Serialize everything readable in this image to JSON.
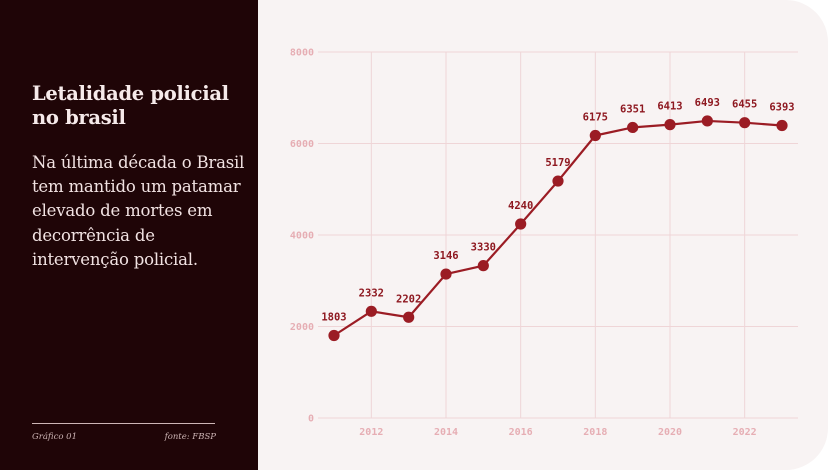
{
  "panel": {
    "title": "Letalidade policial no brasil",
    "description": "Na última década o Brasil tem mantido um patamar elevado de mortes em decorrência de intervenção policial.",
    "footer_left": "Gráfico 01",
    "footer_right": "fonte: FBSP"
  },
  "colors": {
    "panel_bg": "#1f0507",
    "chart_bg": "#f8f3f3",
    "line": "#9b1c24",
    "grid": "#efd5d7",
    "tick": "#e6aeb4"
  },
  "chart_data": {
    "type": "line",
    "x": [
      2011,
      2012,
      2013,
      2014,
      2015,
      2016,
      2017,
      2018,
      2019,
      2020,
      2021,
      2022,
      2023
    ],
    "values": [
      1803,
      2332,
      2202,
      3146,
      3330,
      4240,
      5179,
      6175,
      6351,
      6413,
      6493,
      6455,
      6393
    ],
    "data_labels": [
      "1803",
      "2332",
      "2202",
      "3146",
      "3330",
      "4240",
      "5179",
      "6175",
      "6351",
      "6413",
      "6493",
      "6455",
      "6393"
    ],
    "xticks": [
      2012,
      2014,
      2016,
      2018,
      2020,
      2022
    ],
    "xtick_labels": [
      "2012",
      "2014",
      "2016",
      "2018",
      "2020",
      "2022"
    ],
    "yticks": [
      0,
      2000,
      4000,
      6000,
      8000
    ],
    "ytick_labels": [
      "0",
      "2000",
      "4000",
      "6000",
      "8000"
    ],
    "ylim": [
      0,
      8000
    ],
    "grid": true,
    "title": "",
    "xlabel": "",
    "ylabel": ""
  }
}
